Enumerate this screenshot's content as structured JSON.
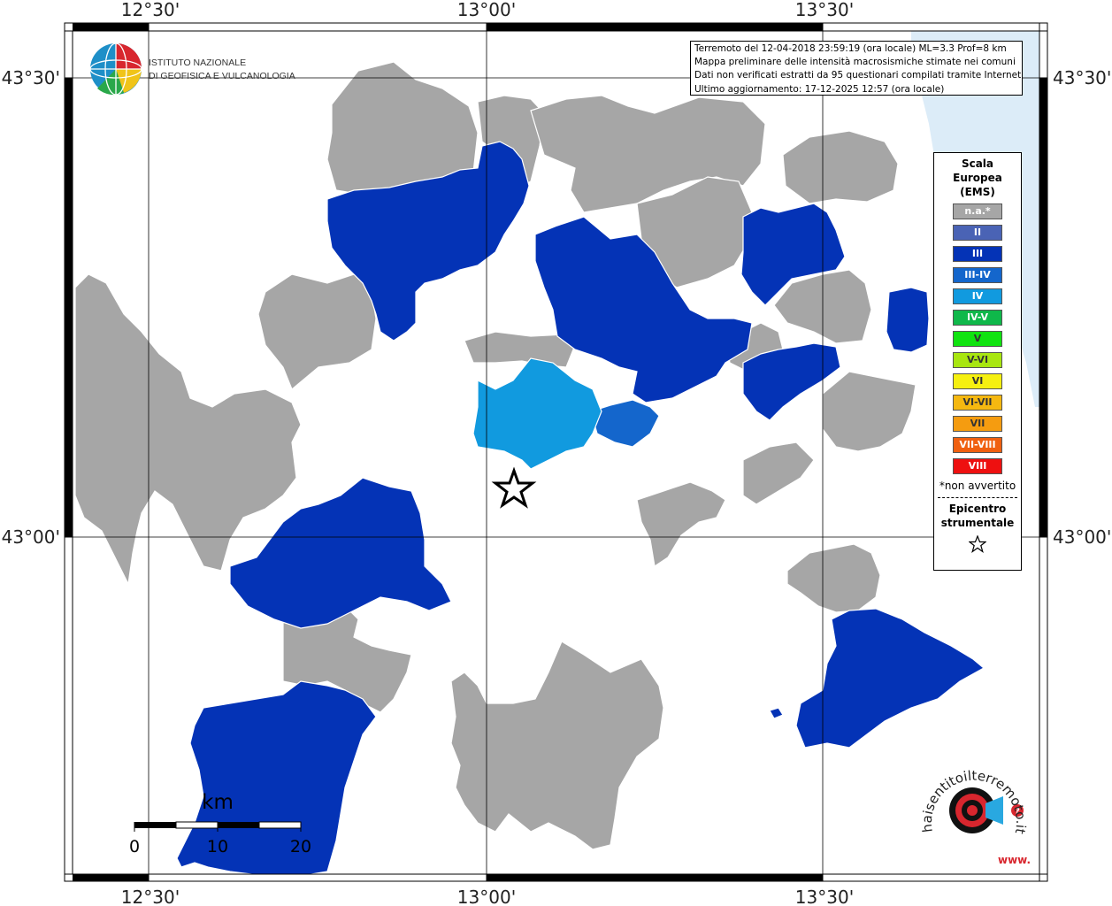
{
  "coords": {
    "top": [
      "12°30'",
      "13°00'",
      "13°30'"
    ],
    "bottom": [
      "12°30'",
      "13°00'",
      "13°30'"
    ],
    "left": [
      "43°30'",
      "43°00'"
    ],
    "right": [
      "43°30'",
      "43°00'"
    ]
  },
  "institute": {
    "line1": "ISTITUTO NAZIONALE",
    "line2": "DI GEOFISICA E VULCANOLOGIA"
  },
  "info": {
    "line1": "Terremoto del 12-04-2018 23:59:19 (ora locale) ML=3.3 Prof=8 km",
    "line2": "Mappa preliminare delle intensità macrosismiche stimate nei comuni",
    "line3": "Dati non verificati estratti da 95 questionari compilati tramite Internet.",
    "line4": "Ultimo aggiornamento: 17-12-2025 12:57 (ora locale)"
  },
  "legend": {
    "title": [
      "Scala",
      "Europea",
      "(EMS)"
    ],
    "items": [
      {
        "label": "n.a.*",
        "color": "#a6a6a6"
      },
      {
        "label": "II",
        "color": "#4a63b5"
      },
      {
        "label": "III",
        "color": "#0433b6"
      },
      {
        "label": "III-IV",
        "color": "#1466cc"
      },
      {
        "label": "IV",
        "color": "#119adf"
      },
      {
        "label": "IV-V",
        "color": "#0fb84a"
      },
      {
        "label": "V",
        "color": "#10e310"
      },
      {
        "label": "V-VI",
        "color": "#a8e610"
      },
      {
        "label": "VI",
        "color": "#f5f010"
      },
      {
        "label": "VI-VII",
        "color": "#f5b810"
      },
      {
        "label": "VII",
        "color": "#f59c10"
      },
      {
        "label": "VII-VIII",
        "color": "#f06010"
      },
      {
        "label": "VIII",
        "color": "#ee1010"
      }
    ],
    "note": "*non avvertito",
    "epicenter": [
      "Epicentro",
      "strumentale"
    ],
    "star_icon": "star-outline-icon"
  },
  "scalebar": {
    "unit": "km",
    "ticks": [
      "0",
      "10",
      "20"
    ]
  },
  "colors": {
    "na": "#a6a6a6",
    "iii": "#0433b6",
    "iii_iv": "#1466cc",
    "iv": "#119adf",
    "sea": "#dcecf8"
  },
  "brand": {
    "text": "haisentitoilterremoto.it",
    "url_text": "www."
  }
}
